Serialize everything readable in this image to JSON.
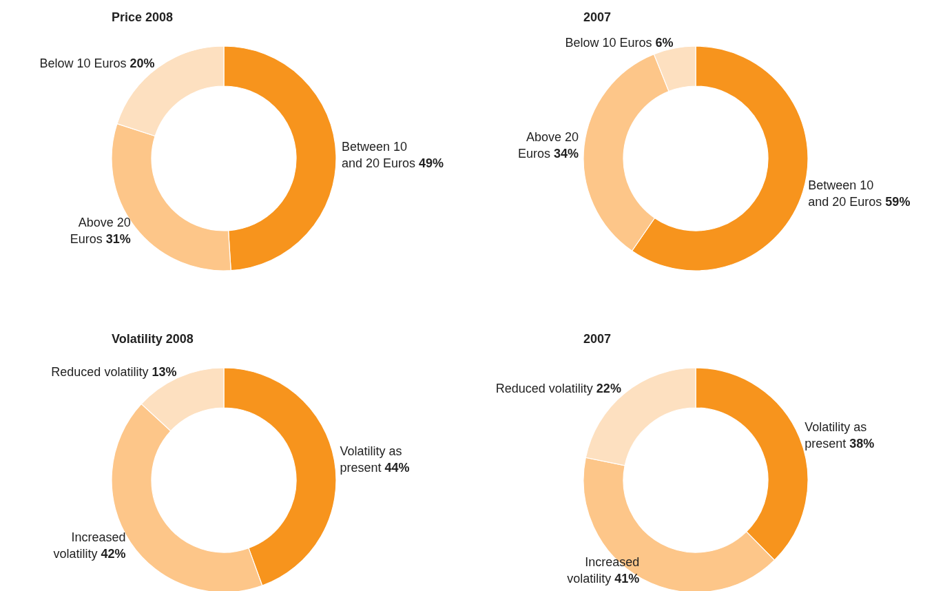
{
  "chart_data": [
    {
      "type": "donut",
      "title": "Price 2008",
      "categories": [
        "Between 10 and 20 Euros",
        "Above 20 Euros",
        "Below 10 Euros"
      ],
      "values": [
        49,
        31,
        20
      ],
      "value_labels": [
        "49%",
        "31%",
        "20%"
      ],
      "colors": [
        "#f7941d",
        "#fdc689",
        "#fde0c0"
      ]
    },
    {
      "type": "donut",
      "title": "2007",
      "categories": [
        "Between 10 and 20 Euros",
        "Above 20 Euros",
        "Below 10 Euros"
      ],
      "values": [
        59,
        34,
        6
      ],
      "value_labels": [
        "59%",
        "34%",
        "6%"
      ],
      "colors": [
        "#f7941d",
        "#fdc689",
        "#fde0c0"
      ]
    },
    {
      "type": "donut",
      "title": "Volatility 2008",
      "categories": [
        "Volatility as present",
        "Increased volatility",
        "Reduced volatility"
      ],
      "values": [
        44,
        42,
        13
      ],
      "value_labels": [
        "44%",
        "42%",
        "13%"
      ],
      "colors": [
        "#f7941d",
        "#fdc689",
        "#fde0c0"
      ]
    },
    {
      "type": "donut",
      "title": "2007",
      "categories": [
        "Volatility as present",
        "Increased volatility",
        "Reduced volatility"
      ],
      "values": [
        38,
        41,
        22
      ],
      "value_labels": [
        "38%",
        "41%",
        "22%"
      ],
      "colors": [
        "#f7941d",
        "#fdc689",
        "#fde0c0"
      ]
    }
  ]
}
